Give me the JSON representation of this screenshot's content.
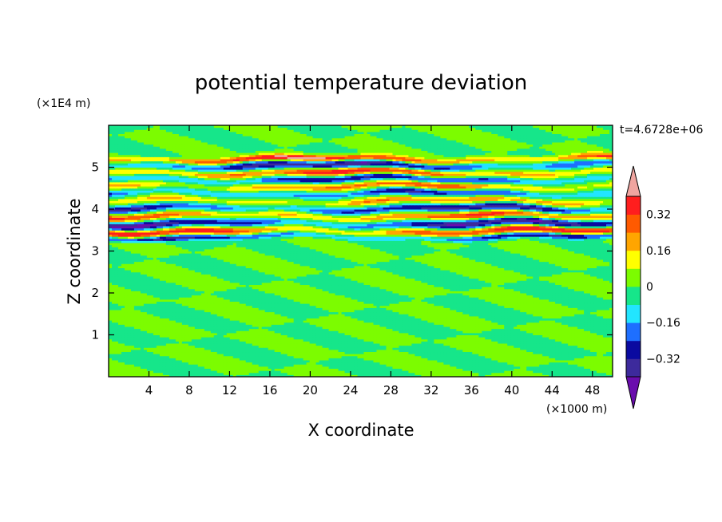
{
  "chart_data": {
    "type": "heatmap",
    "title": "potential temperature deviation",
    "xlabel": "X coordinate",
    "ylabel": "Z coordinate",
    "x_unit": "(×1000 m)",
    "y_unit": "(×1E4 m)",
    "time_label": "t=4.6728e+06",
    "xlim": [
      0,
      50
    ],
    "ylim": [
      0,
      6
    ],
    "x_ticks": [
      4,
      8,
      12,
      16,
      20,
      24,
      28,
      32,
      36,
      40,
      44,
      48
    ],
    "y_ticks": [
      1,
      2,
      3,
      4,
      5
    ],
    "colorbar": {
      "levels": [
        -0.4,
        -0.32,
        -0.24,
        -0.16,
        -0.08,
        0,
        0.08,
        0.16,
        0.24,
        0.32,
        0.4
      ],
      "tick_values": [
        0.32,
        0.16,
        0,
        -0.16,
        -0.32
      ],
      "tick_labels": [
        "0.32",
        "0.16",
        "0",
        "−0.16",
        "−0.32"
      ],
      "colors": [
        "#6a0dad",
        "#3d2a9c",
        "#0a0aa0",
        "#1e6fff",
        "#22e5ff",
        "#16e68a",
        "#7cfc00",
        "#ffff00",
        "#ffa500",
        "#ff5a00",
        "#ff1e1e",
        "#f0a5a0"
      ]
    },
    "bands": [
      {
        "z": 5.2,
        "v": 0.4,
        "thick": 0.07
      },
      {
        "z": 5.05,
        "v": -0.36,
        "thick": 0.09
      },
      {
        "z": 4.88,
        "v": 0.34,
        "thick": 0.08
      },
      {
        "z": 4.72,
        "v": -0.3,
        "thick": 0.07
      },
      {
        "z": 4.55,
        "v": 0.26,
        "thick": 0.07
      },
      {
        "z": 4.38,
        "v": -0.26,
        "thick": 0.07
      },
      {
        "z": 4.2,
        "v": 0.22,
        "thick": 0.07
      },
      {
        "z": 4.02,
        "v": -0.34,
        "thick": 0.08
      },
      {
        "z": 3.84,
        "v": 0.3,
        "thick": 0.08
      },
      {
        "z": 3.66,
        "v": -0.38,
        "thick": 0.09
      },
      {
        "z": 3.48,
        "v": 0.36,
        "thick": 0.08
      },
      {
        "z": 3.34,
        "v": -0.3,
        "thick": 0.06
      }
    ]
  }
}
